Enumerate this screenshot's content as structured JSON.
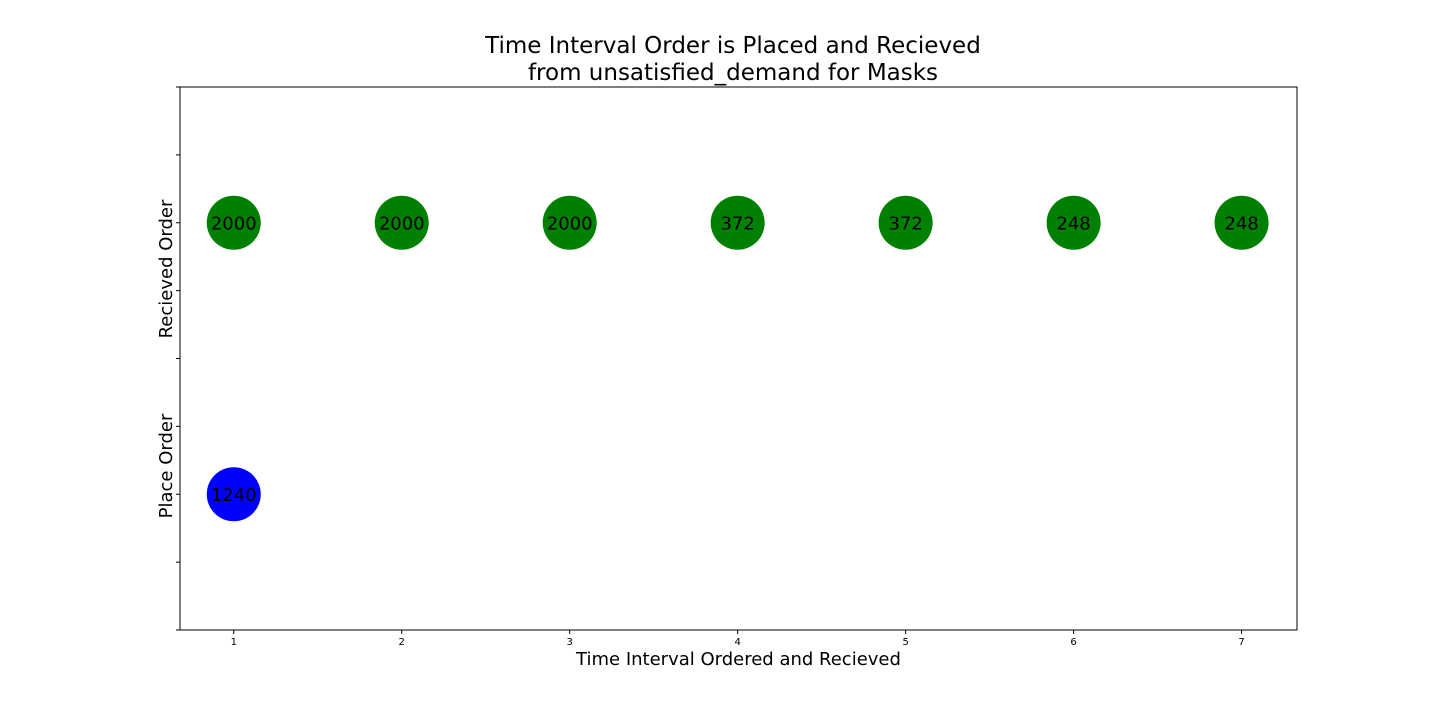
{
  "chart_data": {
    "type": "scatter",
    "title": "Time Interval Order is Placed and Recieved\nfrom unsatisfied_demand for Masks",
    "xlabel": "Time Interval Ordered and Recieved",
    "y_group_labels": [
      "Place Order",
      "Recieved Order"
    ],
    "xlim": [
      0.68,
      7.33
    ],
    "ylim": [
      0,
      8
    ],
    "x_ticks": [
      1,
      2,
      3,
      4,
      5,
      6,
      7
    ],
    "y_ticks": [
      0,
      1,
      2,
      3,
      4,
      5,
      6,
      7,
      8
    ],
    "grid": false,
    "legend": "none",
    "series": [
      {
        "color": "#008000",
        "points": [
          {
            "x": 1,
            "y": 6,
            "label": "2000"
          },
          {
            "x": 2,
            "y": 6,
            "label": "2000"
          },
          {
            "x": 3,
            "y": 6,
            "label": "2000"
          },
          {
            "x": 4,
            "y": 6,
            "label": "372"
          },
          {
            "x": 5,
            "y": 6,
            "label": "372"
          },
          {
            "x": 6,
            "y": 6,
            "label": "248"
          },
          {
            "x": 7,
            "y": 6,
            "label": "248"
          }
        ]
      },
      {
        "color": "#0000ff",
        "points": [
          {
            "x": 1,
            "y": 2,
            "label": "1240"
          }
        ]
      }
    ]
  }
}
